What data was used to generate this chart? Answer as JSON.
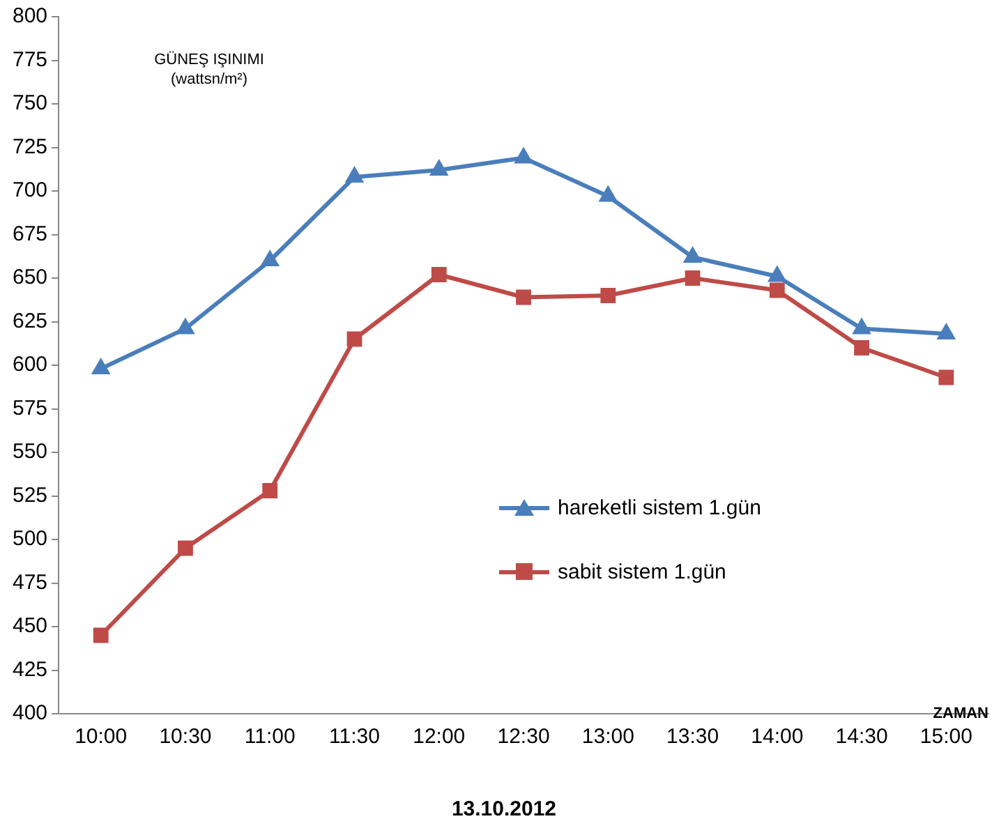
{
  "chart_data": {
    "type": "line",
    "xlabel": "ZAMAN",
    "ylabel": "GÜNEŞ IŞINIMI (wattsn/m²)",
    "annotations": [
      "13.10.2012"
    ],
    "categories": [
      "10:00",
      "10:30",
      "11:00",
      "11:30",
      "12:00",
      "12:30",
      "13:00",
      "13:30",
      "14:00",
      "14:30",
      "15:00"
    ],
    "series": [
      {
        "name": "hareketli sistem 1.gün",
        "color": "#4a7ebb",
        "marker": "triangle",
        "values": [
          598,
          621,
          660,
          708,
          712,
          719,
          697,
          662,
          651,
          621,
          618
        ]
      },
      {
        "name": "sabit sistem 1.gün",
        "color": "#be4b48",
        "marker": "square",
        "values": [
          445,
          495,
          528,
          615,
          652,
          639,
          640,
          650,
          643,
          610,
          593
        ]
      }
    ],
    "ylim": [
      400,
      800
    ],
    "yticks": [
      400,
      425,
      450,
      475,
      500,
      525,
      550,
      575,
      600,
      625,
      650,
      675,
      700,
      725,
      750,
      775,
      800
    ],
    "grid": false,
    "legend": "center"
  }
}
